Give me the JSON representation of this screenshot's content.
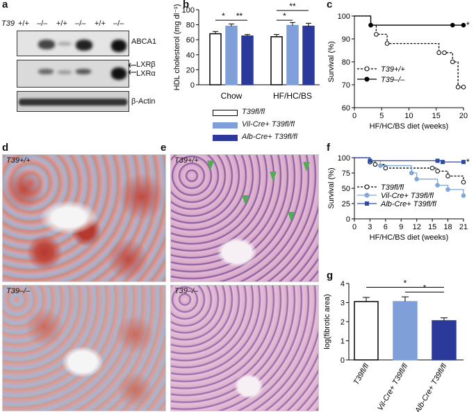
{
  "panel_labels": {
    "a": "a",
    "b": "b",
    "c": "c",
    "d": "d",
    "e": "e",
    "f": "f",
    "g": "g"
  },
  "panel_a": {
    "row_label": "T39",
    "genotypes": [
      "+/+",
      "–/–",
      "+/+",
      "–/–",
      "+/+",
      "–/–"
    ],
    "band_labels": {
      "abca1": "ABCA1",
      "lxrb": "LXRβ",
      "lxra": "LXRα",
      "actin": "β-Actin"
    }
  },
  "panel_d": {
    "top_label": "T39+/+",
    "bottom_label": "T39–/–"
  },
  "panel_e": {
    "top_label": "T39+/+",
    "bottom_label": "T39–/–"
  },
  "legend_b": {
    "items": [
      {
        "label": "T39fl/fl",
        "color": "#ffffff"
      },
      {
        "label": "Vil-Cre+ T39fl/fl",
        "color": "#7f9fd9"
      },
      {
        "label": "Alb-Cre+ T39fl/fl",
        "color": "#2b3a9a"
      }
    ]
  },
  "chart_data": [
    {
      "panel": "b",
      "type": "bar",
      "ylabel": "HDL cholesterol (mg dl⁻¹)",
      "ylim": [
        0,
        100
      ],
      "yticks": [
        0,
        20,
        40,
        60,
        80,
        100
      ],
      "categories": [
        "Chow",
        "HF/HC/BS"
      ],
      "series": [
        {
          "name": "T39fl/fl",
          "color": "#ffffff",
          "values": [
            68,
            64
          ],
          "errors": [
            3,
            3
          ]
        },
        {
          "name": "Vil-Cre+ T39fl/fl",
          "color": "#7f9fd9",
          "values": [
            78,
            79
          ],
          "errors": [
            3,
            4
          ]
        },
        {
          "name": "Alb-Cre+ T39fl/fl",
          "color": "#2b3a9a",
          "values": [
            65,
            78
          ],
          "errors": [
            2,
            4
          ]
        }
      ],
      "significance": [
        {
          "group": "Chow",
          "label": "*"
        },
        {
          "group": "Chow",
          "label": "**"
        },
        {
          "group": "HF/HC/BS",
          "label": "*"
        },
        {
          "group": "HF/HC/BS",
          "label": "**"
        }
      ]
    },
    {
      "panel": "c",
      "type": "line",
      "xlabel": "HF/HC/BS diet (weeks)",
      "ylabel": "Survival (%)",
      "xlim": [
        0,
        20
      ],
      "ylim": [
        60,
        100
      ],
      "xticks": [
        0,
        5,
        10,
        15,
        20
      ],
      "yticks": [
        60,
        70,
        80,
        90,
        100
      ],
      "series": [
        {
          "name": "T39+/+",
          "style": "dashed",
          "marker": "open-circle",
          "points": [
            [
              0,
              100
            ],
            [
              3,
              96
            ],
            [
              4,
              92
            ],
            [
              6,
              88
            ],
            [
              15.5,
              84
            ],
            [
              16.5,
              84
            ],
            [
              18,
              80
            ],
            [
              19,
              69
            ],
            [
              20,
              69
            ]
          ]
        },
        {
          "name": "T39–/–",
          "style": "solid",
          "marker": "filled-circle",
          "points": [
            [
              0,
              100
            ],
            [
              3,
              96
            ],
            [
              18,
              96
            ],
            [
              20,
              96
            ]
          ]
        }
      ],
      "annotation": "*"
    },
    {
      "panel": "f",
      "type": "line",
      "xlabel": "HF/HC/BS diet (weeks)",
      "ylabel": "Survival (%)",
      "xlim": [
        0,
        21
      ],
      "ylim": [
        0,
        100
      ],
      "xticks": [
        0,
        3,
        6,
        9,
        12,
        15,
        18,
        21
      ],
      "yticks": [
        0,
        25,
        50,
        75,
        100
      ],
      "series": [
        {
          "name": "T39fl/fl",
          "style": "dashed",
          "marker": "open-circle",
          "color": "#000000",
          "points": [
            [
              0,
              100
            ],
            [
              3,
              93
            ],
            [
              4,
              89
            ],
            [
              6,
              83
            ],
            [
              15,
              83
            ],
            [
              16,
              78
            ],
            [
              18,
              70
            ],
            [
              21,
              60
            ]
          ]
        },
        {
          "name": "Vil-Cre+ T39fl/fl",
          "style": "solid",
          "marker": "filled-circle",
          "color": "#7fa8d6",
          "points": [
            [
              0,
              100
            ],
            [
              3,
              95
            ],
            [
              5,
              87
            ],
            [
              11,
              75
            ],
            [
              12,
              65
            ],
            [
              16,
              55
            ],
            [
              18,
              48
            ],
            [
              21,
              38
            ]
          ]
        },
        {
          "name": "Alb-Cre+ T39fl/fl",
          "style": "solid",
          "marker": "filled-square",
          "color": "#2b4aa8",
          "points": [
            [
              0,
              100
            ],
            [
              3,
              95
            ],
            [
              16,
              95
            ],
            [
              17,
              93
            ],
            [
              21,
              93
            ]
          ]
        }
      ],
      "annotation": "*"
    },
    {
      "panel": "g",
      "type": "bar",
      "ylabel": "log(fibrotic area)",
      "ylim": [
        0,
        4
      ],
      "yticks": [
        0,
        1,
        2,
        3,
        4
      ],
      "categories": [
        "T39fl/fl",
        "Vil-Cre+ T39fl/fl",
        "Alb-Cre+ T39fl/fl"
      ],
      "colors": [
        "#ffffff",
        "#7f9fd9",
        "#2b3a9a"
      ],
      "values": [
        3.05,
        3.05,
        2.05
      ],
      "errors": [
        0.22,
        0.25,
        0.15
      ],
      "significance": [
        {
          "label": "*"
        },
        {
          "label": "*"
        }
      ]
    }
  ]
}
